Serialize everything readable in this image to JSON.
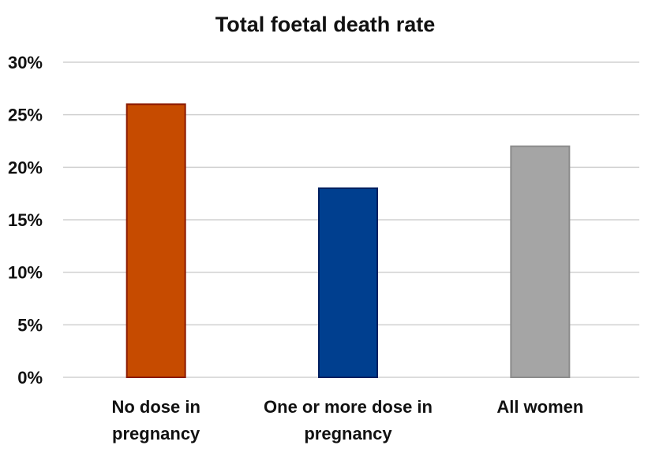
{
  "chart_data": {
    "type": "bar",
    "title": "Total foetal death rate",
    "xlabel": "",
    "ylabel": "",
    "ylim": [
      0,
      30
    ],
    "ytick_labels": [
      "0%",
      "5%",
      "10%",
      "15%",
      "20%",
      "25%",
      "30%"
    ],
    "categories": [
      "No dose in pregnancy",
      "One or more dose in pregnancy",
      "All women"
    ],
    "category_lines": [
      [
        "No dose in",
        "pregnancy"
      ],
      [
        "One or more dose in",
        "pregnancy"
      ],
      [
        "All women"
      ]
    ],
    "values": [
      26,
      18,
      22
    ],
    "bar_colors": [
      "#C64B00",
      "#003F8F",
      "#A5A5A5"
    ],
    "bar_outline_colors": [
      "#8B1A00",
      "#002060",
      "#8C8C8C"
    ],
    "grid": true,
    "legend": "none"
  }
}
